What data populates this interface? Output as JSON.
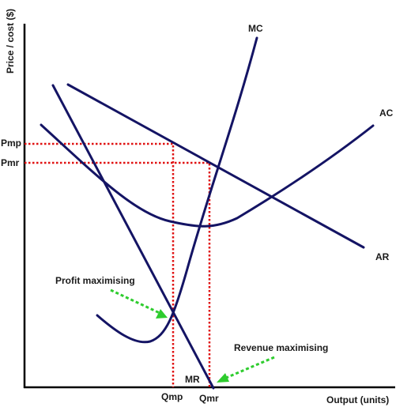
{
  "axes": {
    "y_label": "Price / cost ($)",
    "x_label": "Output (units)"
  },
  "price_labels": {
    "pmp": "Pmp",
    "pmr": "Pmr"
  },
  "quantity_labels": {
    "qmp": "Qmp",
    "qmr": "Qmr"
  },
  "curves": {
    "mc": "MC",
    "ac": "AC",
    "ar": "AR",
    "mr": "MR"
  },
  "annotations": {
    "profit": "Profit maximising",
    "revenue": "Revenue maximising"
  },
  "colors": {
    "curve": "#141464",
    "guide": "#e01010",
    "pointer": "#2ecc2e",
    "axis": "#000000"
  }
}
